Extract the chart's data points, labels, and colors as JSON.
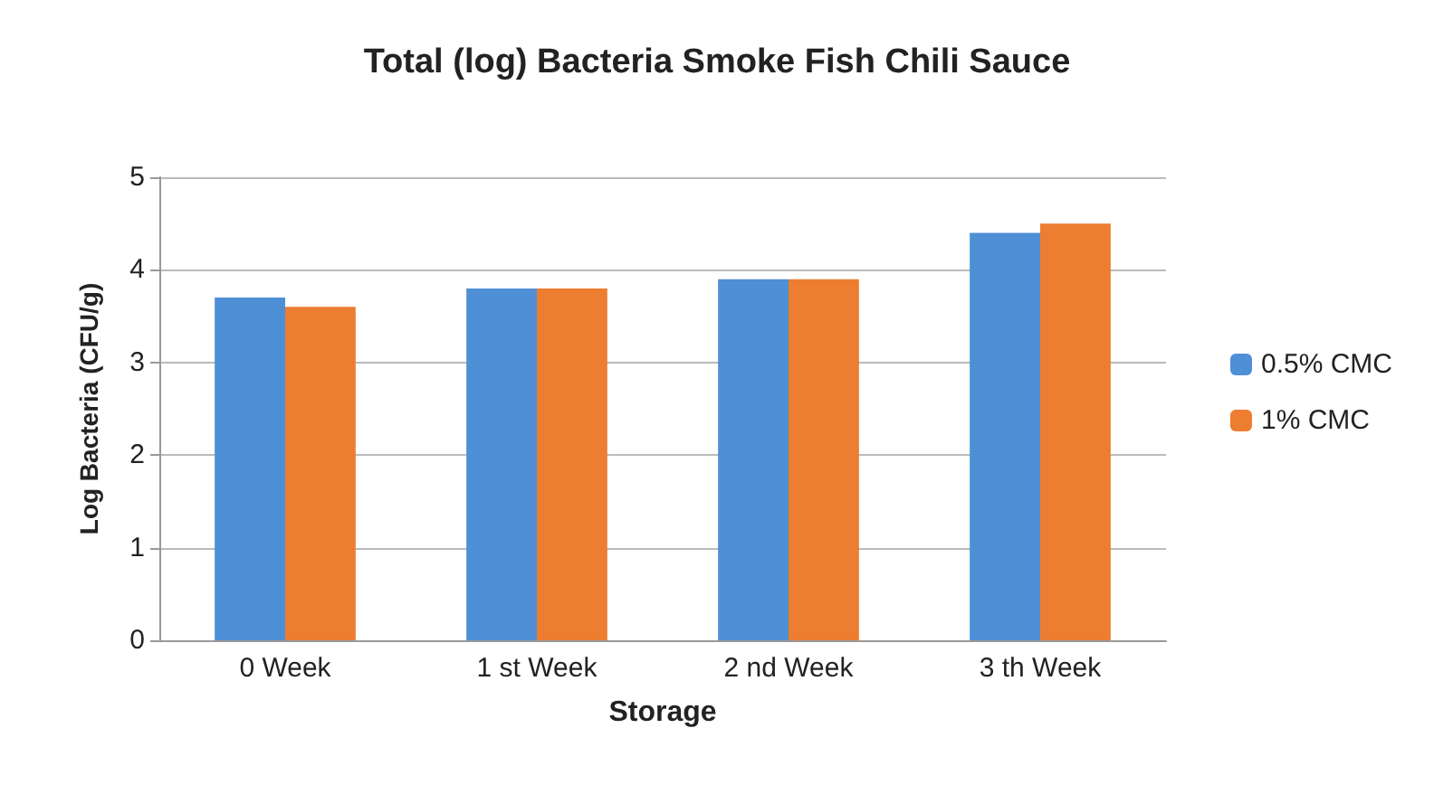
{
  "chart_data": {
    "type": "bar",
    "title": "Total (log) Bacteria Smoke Fish Chili Sauce",
    "xlabel": "Storage",
    "ylabel": "Log Bacteria (CFU/g)",
    "categories": [
      "0 Week",
      "1 st Week",
      "2 nd Week",
      "3 th Week"
    ],
    "series": [
      {
        "name": "0.5% CMC",
        "color": "#4f8fd6",
        "values": [
          3.7,
          3.8,
          3.9,
          4.4
        ]
      },
      {
        "name": "1% CMC",
        "color": "#ed7d31",
        "values": [
          3.6,
          3.8,
          3.9,
          4.5
        ]
      }
    ],
    "ylim": [
      0,
      5
    ],
    "yticks": [
      0,
      1,
      2,
      3,
      4,
      5
    ],
    "grid": "y",
    "legend": "right"
  }
}
